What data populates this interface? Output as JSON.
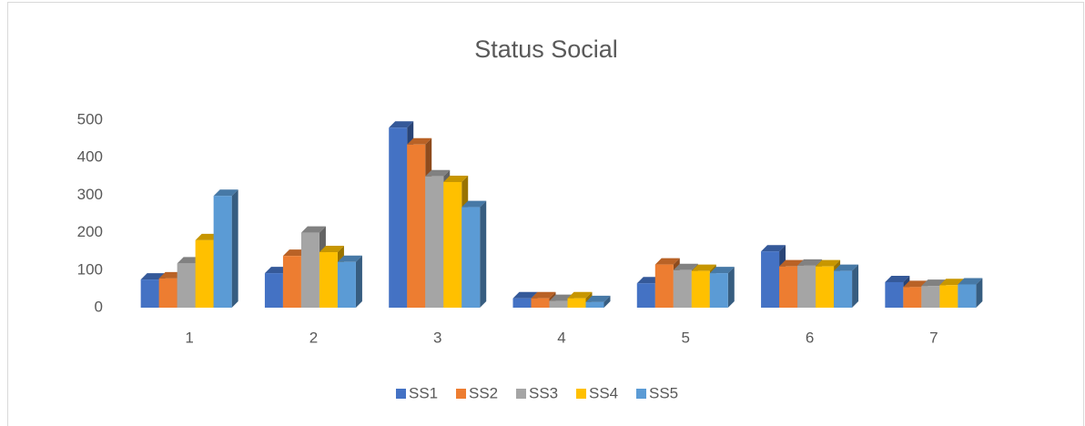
{
  "chart_data": {
    "type": "bar3d",
    "title": "Status Social",
    "categories": [
      "1",
      "2",
      "3",
      "4",
      "5",
      "6",
      "7"
    ],
    "series": [
      {
        "name": "SS1",
        "color": "#4472c4",
        "values": [
          75,
          92,
          480,
          25,
          65,
          150,
          68
        ]
      },
      {
        "name": "SS2",
        "color": "#ed7d31",
        "values": [
          78,
          138,
          435,
          25,
          115,
          110,
          55
        ]
      },
      {
        "name": "SS3",
        "color": "#a5a5a5",
        "values": [
          118,
          200,
          350,
          18,
          100,
          112,
          58
        ]
      },
      {
        "name": "SS4",
        "color": "#ffc000",
        "values": [
          180,
          148,
          335,
          25,
          98,
          110,
          60
        ]
      },
      {
        "name": "SS5",
        "color": "#5b9bd5",
        "values": [
          298,
          122,
          268,
          15,
          92,
          98,
          62
        ]
      }
    ],
    "ylim": [
      0,
      500
    ],
    "yticks": [
      0,
      100,
      200,
      300,
      400,
      500
    ],
    "grid": false,
    "legend": "bottom"
  }
}
